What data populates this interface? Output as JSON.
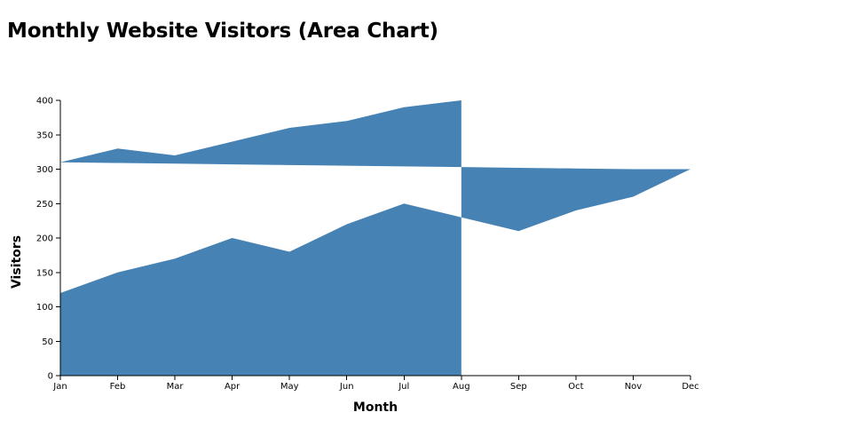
{
  "chart_data": {
    "type": "area",
    "title": "Monthly Website Visitors (Area Chart)",
    "xlabel": "Month",
    "ylabel": "Visitors",
    "categories": [
      "Jan",
      "Feb",
      "Mar",
      "Apr",
      "May",
      "Jun",
      "Jul",
      "Aug",
      "Sep",
      "Oct",
      "Nov",
      "Dec"
    ],
    "yticks": [
      0,
      50,
      100,
      150,
      200,
      250,
      300,
      350,
      400
    ],
    "ylim": [
      0,
      400
    ],
    "grid": false,
    "color": "#4682b4",
    "areas": [
      {
        "x": [
          "Jan",
          "Feb",
          "Mar",
          "Apr",
          "May",
          "Jun",
          "Jul",
          "Aug"
        ],
        "top": [
          120,
          150,
          170,
          200,
          180,
          220,
          250,
          230
        ],
        "bottom": [
          0,
          0,
          0,
          0,
          0,
          0,
          0,
          0
        ]
      },
      {
        "x": [
          "Jan",
          "Feb",
          "Mar",
          "Apr",
          "May",
          "Jun",
          "Jul",
          "Aug"
        ],
        "top": [
          310,
          330,
          320,
          340,
          360,
          370,
          390,
          400
        ],
        "bottom": [
          310,
          309,
          308,
          307,
          306,
          305,
          304,
          303
        ]
      },
      {
        "x": [
          "Aug",
          "Sep",
          "Oct",
          "Nov",
          "Dec"
        ],
        "top": [
          303,
          302,
          301,
          300,
          300
        ],
        "bottom": [
          230,
          210,
          240,
          260,
          300
        ]
      }
    ]
  }
}
